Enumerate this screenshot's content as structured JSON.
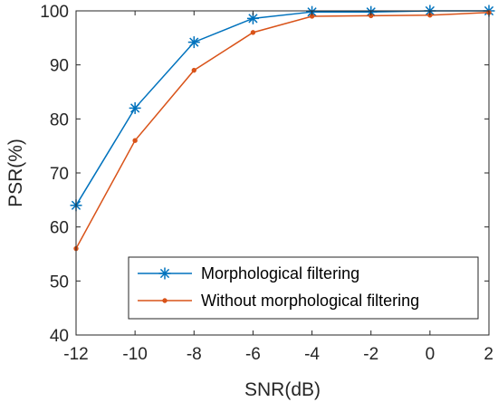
{
  "chart_data": {
    "type": "line",
    "title": "",
    "xlabel": "SNR(dB)",
    "ylabel": "PSR(%)",
    "x": [
      -12,
      -10,
      -8,
      -6,
      -4,
      -2,
      0,
      2
    ],
    "x_ticks": [
      -12,
      -10,
      -8,
      -6,
      -4,
      -2,
      0,
      2
    ],
    "x_tick_labels": [
      "-12",
      "-10",
      "-8",
      "-6",
      "-4",
      "-2",
      "0",
      "2"
    ],
    "y_ticks": [
      40,
      50,
      60,
      70,
      80,
      90,
      100
    ],
    "y_tick_labels": [
      "40",
      "50",
      "60",
      "70",
      "80",
      "90",
      "100"
    ],
    "xlim": [
      -12,
      2
    ],
    "ylim": [
      40,
      100
    ],
    "grid": false,
    "legend_position": "lower-right",
    "series": [
      {
        "name": "Morphological filtering",
        "color": "#0072BD",
        "marker": "asterisk",
        "values": [
          64,
          82,
          94.2,
          98.6,
          99.8,
          99.8,
          100,
          100
        ]
      },
      {
        "name": "Without morphological filtering",
        "color": "#D95319",
        "marker": "dot",
        "values": [
          56,
          76,
          89,
          96,
          99,
          99.1,
          99.2,
          99.7
        ]
      }
    ]
  }
}
